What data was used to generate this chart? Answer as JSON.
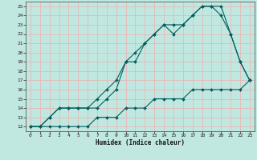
{
  "title": "",
  "xlabel": "Humidex (Indice chaleur)",
  "ylabel": "",
  "background_color": "#c0e8e0",
  "grid_color": "#e8b8b8",
  "line_color": "#006060",
  "xlim": [
    -0.5,
    23.5
  ],
  "ylim": [
    11.5,
    25.5
  ],
  "xticks": [
    0,
    1,
    2,
    3,
    4,
    5,
    6,
    7,
    8,
    9,
    10,
    11,
    12,
    13,
    14,
    15,
    16,
    17,
    18,
    19,
    20,
    21,
    22,
    23
  ],
  "yticks": [
    12,
    13,
    14,
    15,
    16,
    17,
    18,
    19,
    20,
    21,
    22,
    23,
    24,
    25
  ],
  "line1_x": [
    0,
    1,
    2,
    3,
    4,
    5,
    6,
    7,
    8,
    9,
    10,
    11,
    12,
    13,
    14,
    15,
    16,
    17,
    18,
    19,
    20,
    21,
    22,
    23
  ],
  "line1_y": [
    12,
    12,
    13,
    14,
    14,
    14,
    14,
    15,
    16,
    17,
    19,
    19,
    21,
    22,
    23,
    22,
    23,
    24,
    25,
    25,
    25,
    22,
    19,
    17
  ],
  "line2_x": [
    0,
    1,
    2,
    3,
    4,
    5,
    6,
    7,
    8,
    9,
    10,
    11,
    12,
    13,
    14,
    15,
    16,
    17,
    18,
    19,
    20,
    21,
    22,
    23
  ],
  "line2_y": [
    12,
    12,
    13,
    14,
    14,
    14,
    14,
    14,
    15,
    16,
    19,
    20,
    21,
    22,
    23,
    23,
    23,
    24,
    25,
    25,
    24,
    22,
    19,
    17
  ],
  "line3_x": [
    0,
    1,
    2,
    3,
    4,
    5,
    6,
    7,
    8,
    9,
    10,
    11,
    12,
    13,
    14,
    15,
    16,
    17,
    18,
    19,
    20,
    21,
    22,
    23
  ],
  "line3_y": [
    12,
    12,
    12,
    12,
    12,
    12,
    12,
    13,
    13,
    13,
    14,
    14,
    14,
    15,
    15,
    15,
    15,
    16,
    16,
    16,
    16,
    16,
    16,
    17
  ]
}
